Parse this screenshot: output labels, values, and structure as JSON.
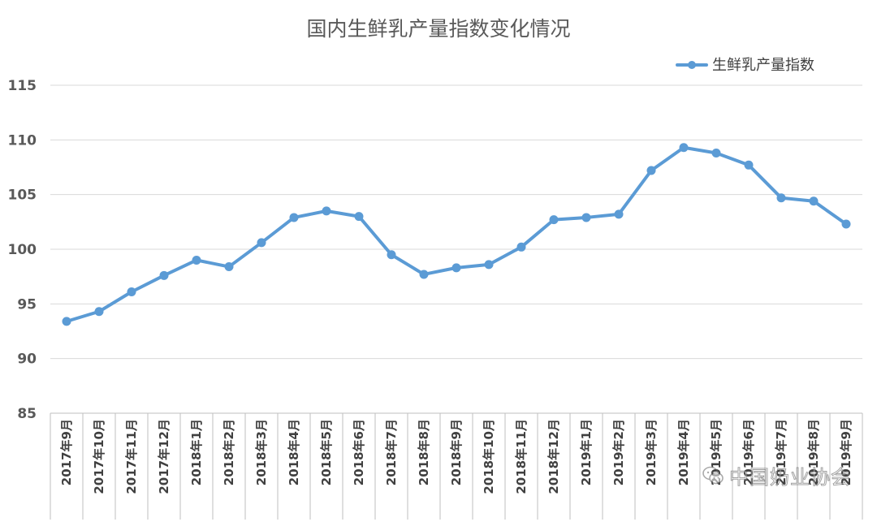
{
  "chart_data": {
    "type": "line",
    "title": "国内生鲜乳产量指数变化情况",
    "xlabel": "",
    "ylabel": "",
    "ylim": [
      85,
      115
    ],
    "yticks": [
      85,
      90,
      95,
      100,
      105,
      110,
      115
    ],
    "grid": true,
    "legend_position": "top-right",
    "categories": [
      "2017年9月",
      "2017年10月",
      "2017年11月",
      "2017年12月",
      "2018年1月",
      "2018年2月",
      "2018年3月",
      "2018年4月",
      "2018年5月",
      "2018年6月",
      "2018年7月",
      "2018年8月",
      "2018年9月",
      "2018年10月",
      "2018年11月",
      "2018年12月",
      "2019年1月",
      "2019年2月",
      "2019年3月",
      "2019年4月",
      "2019年5月",
      "2019年6月",
      "2019年7月",
      "2019年8月",
      "2019年9月"
    ],
    "series": [
      {
        "name": "生鲜乳产量指数",
        "color": "#5b9bd5",
        "values": [
          93.4,
          94.3,
          96.1,
          97.6,
          99.0,
          98.4,
          100.6,
          102.9,
          103.5,
          103.0,
          99.5,
          97.7,
          98.3,
          98.6,
          100.2,
          102.7,
          102.9,
          103.2,
          107.2,
          109.3,
          108.8,
          107.7,
          104.7,
          104.4,
          102.3
        ]
      }
    ]
  },
  "watermark": {
    "text": "中国奶业协会",
    "icon": "wechat-icon"
  }
}
